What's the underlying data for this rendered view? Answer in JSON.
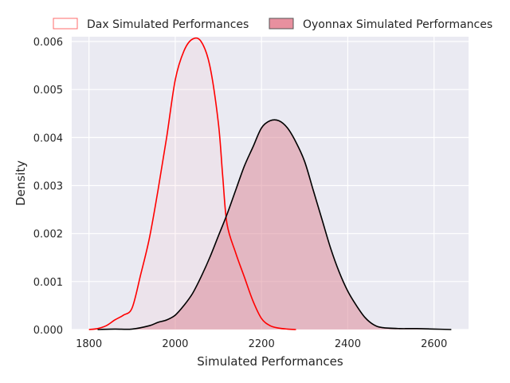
{
  "chart_data": {
    "type": "area",
    "xlabel": "Simulated Performances",
    "ylabel": "Density",
    "xlim": [
      1760,
      2680
    ],
    "ylim": [
      0,
      0.0061
    ],
    "x_ticks": [
      1800,
      2000,
      2200,
      2400,
      2600
    ],
    "y_ticks": [
      0.0,
      0.001,
      0.002,
      0.003,
      0.004,
      0.005,
      0.006
    ],
    "x_tick_labels": [
      "1800",
      "2000",
      "2200",
      "2400",
      "2600"
    ],
    "y_tick_labels": [
      "0.000",
      "0.001",
      "0.002",
      "0.003",
      "0.004",
      "0.005",
      "0.006"
    ],
    "grid": true,
    "legend_position": "top",
    "series": [
      {
        "name": "Dax Simulated Performances",
        "line_color": "#ff0000",
        "fill_color": "#ffb6c1",
        "fill_opacity": 0.12,
        "points": [
          [
            1800,
            0.0
          ],
          [
            1820,
            2e-05
          ],
          [
            1840,
            8e-05
          ],
          [
            1860,
            0.0002
          ],
          [
            1880,
            0.0003
          ],
          [
            1900,
            0.00045
          ],
          [
            1920,
            0.00115
          ],
          [
            1940,
            0.0019
          ],
          [
            1960,
            0.0029
          ],
          [
            1980,
            0.004
          ],
          [
            2000,
            0.0052
          ],
          [
            2020,
            0.0058
          ],
          [
            2040,
            0.00605
          ],
          [
            2060,
            0.006
          ],
          [
            2080,
            0.0055
          ],
          [
            2100,
            0.0043
          ],
          [
            2110,
            0.0032
          ],
          [
            2120,
            0.0022
          ],
          [
            2140,
            0.0016
          ],
          [
            2160,
            0.0011
          ],
          [
            2180,
            0.0006
          ],
          [
            2200,
            0.00023
          ],
          [
            2220,
            8e-05
          ],
          [
            2240,
            3e-05
          ],
          [
            2260,
            1e-05
          ],
          [
            2280,
            0.0
          ]
        ]
      },
      {
        "name": "Oyonnax Simulated Performances",
        "line_color": "#000000",
        "fill_color": "#dc8c9b",
        "fill_opacity": 0.55,
        "points": [
          [
            1820,
            0.0
          ],
          [
            1860,
            1e-05
          ],
          [
            1900,
            1e-05
          ],
          [
            1940,
            8e-05
          ],
          [
            1960,
            0.00015
          ],
          [
            1980,
            0.0002
          ],
          [
            2000,
            0.0003
          ],
          [
            2020,
            0.0005
          ],
          [
            2040,
            0.00075
          ],
          [
            2060,
            0.0011
          ],
          [
            2080,
            0.0015
          ],
          [
            2100,
            0.00195
          ],
          [
            2120,
            0.0024
          ],
          [
            2140,
            0.0029
          ],
          [
            2160,
            0.0034
          ],
          [
            2180,
            0.0038
          ],
          [
            2200,
            0.0042
          ],
          [
            2220,
            0.00435
          ],
          [
            2240,
            0.00435
          ],
          [
            2260,
            0.0042
          ],
          [
            2280,
            0.0039
          ],
          [
            2300,
            0.0035
          ],
          [
            2320,
            0.0029
          ],
          [
            2340,
            0.0023
          ],
          [
            2360,
            0.0017
          ],
          [
            2380,
            0.0012
          ],
          [
            2400,
            0.0008
          ],
          [
            2420,
            0.0005
          ],
          [
            2440,
            0.00025
          ],
          [
            2460,
            0.0001
          ],
          [
            2480,
            4e-05
          ],
          [
            2520,
            2e-05
          ],
          [
            2560,
            2e-05
          ],
          [
            2600,
            1e-05
          ],
          [
            2640,
            0.0
          ]
        ]
      }
    ]
  },
  "legend": {
    "items": [
      {
        "label": "Dax Simulated Performances",
        "swatch_fill": "#ffffff",
        "swatch_stroke": "#ff6b6b"
      },
      {
        "label": "Oyonnax Simulated Performances",
        "swatch_fill": "#e8909f",
        "swatch_stroke": "#555555"
      }
    ]
  },
  "colors": {
    "plot_background": "#eaeaf2",
    "grid": "#ffffff",
    "text": "#262626"
  }
}
